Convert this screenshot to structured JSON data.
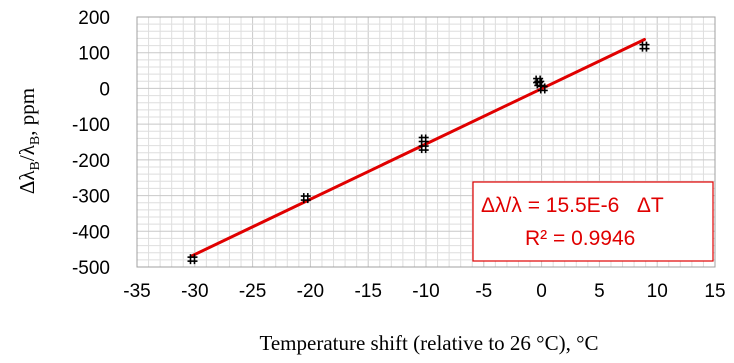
{
  "chart_data": {
    "type": "scatter",
    "x_ticks": [
      "-35",
      "-30",
      "-25",
      "-20",
      "-15",
      "-10",
      "-5",
      "0",
      "5",
      "10",
      "15"
    ],
    "y_ticks": [
      "200",
      "100",
      "0",
      "-100",
      "-200",
      "-300",
      "-400",
      "-500"
    ],
    "xlabel": "Temperature shift (relative to 26 °C), °C",
    "ylabel": {
      "delta": "Δλ",
      "sub1": "B",
      "slash": "/λ",
      "sub2": "B",
      "tail": ", ppm"
    },
    "xlim": [
      -35,
      15
    ],
    "ylim": [
      -500,
      200
    ],
    "grid": true,
    "series": [
      {
        "marker": "star",
        "color": "#000000",
        "points": [
          {
            "x": -30.2,
            "y": -478
          },
          {
            "x": -20.4,
            "y": -307
          },
          {
            "x": -10.2,
            "y": -143
          },
          {
            "x": -10.2,
            "y": -167
          },
          {
            "x": -0.3,
            "y": 22
          },
          {
            "x": -0.2,
            "y": 14
          },
          {
            "x": 0.1,
            "y": 0
          },
          {
            "x": 8.9,
            "y": 117
          }
        ]
      }
    ],
    "fit_line": {
      "color": "#e00000",
      "x": [
        -30.2,
        8.9
      ],
      "y": [
        -468,
        137
      ]
    },
    "annotation": {
      "line1": "Δλ/λ = 15.5E-6   ΔT",
      "line2": "R² = 0.9946"
    }
  }
}
